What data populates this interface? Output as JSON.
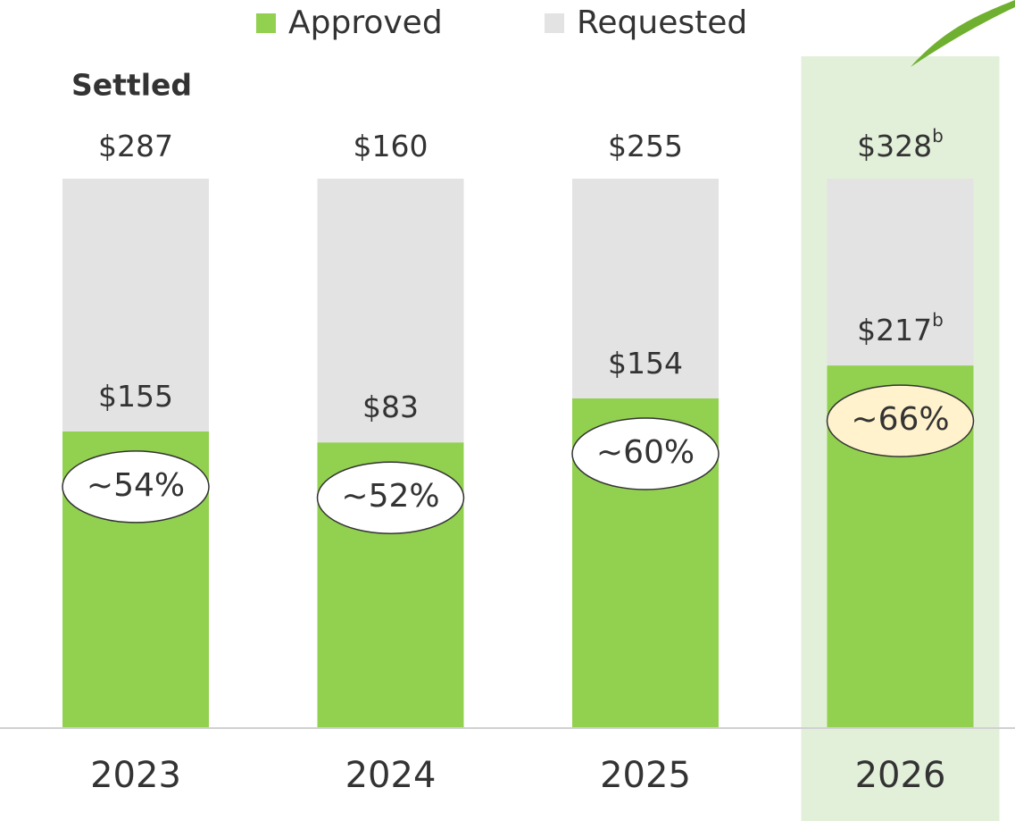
{
  "chart_data": {
    "type": "bar",
    "stacked": true,
    "title": "Settled",
    "categories": [
      "2023",
      "2024",
      "2025",
      "2026"
    ],
    "highlight": "2026",
    "ylim": [
      0,
      100
    ],
    "series": [
      {
        "name": "Approved",
        "color": "#92d050",
        "values": [
          54,
          52,
          60,
          66
        ],
        "value_labels": [
          "~54%",
          "~52%",
          "~60%",
          "~66%"
        ],
        "amounts": [
          155,
          83,
          154,
          217
        ],
        "amount_labels": [
          "$155",
          "$83",
          "$154",
          "$217"
        ],
        "footnotes": [
          null,
          null,
          null,
          "b"
        ]
      },
      {
        "name": "Requested",
        "color": "#e3e3e3",
        "values": [
          46,
          48,
          40,
          34
        ],
        "amounts": [
          287,
          160,
          255,
          328
        ],
        "amount_labels": [
          "$287",
          "$160",
          "$255",
          "$328"
        ],
        "footnotes": [
          null,
          null,
          null,
          "b"
        ]
      }
    ]
  }
}
